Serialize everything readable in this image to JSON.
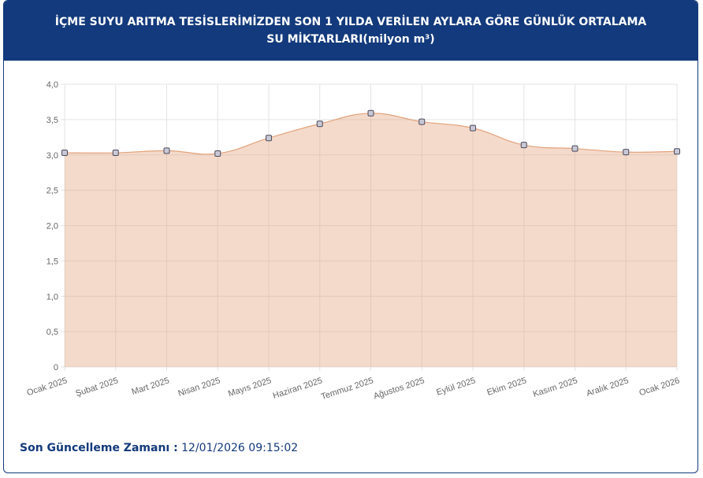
{
  "chart_data": {
    "type": "area",
    "title": "İÇME SUYU ARITMA TESİSLERİMİZDEN SON 1 YILDA VERİLEN AYLARA GÖRE GÜNLÜK ORTALAMA SU MİKTARLARI(milyon m³)",
    "categories": [
      "Ocak 2025",
      "Şubat 2025",
      "Mart 2025",
      "Nisan 2025",
      "Mayıs 2025",
      "Haziran 2025",
      "Temmuz 2025",
      "Ağustos 2025",
      "Eylül 2025",
      "Ekim 2025",
      "Kasım 2025",
      "Aralık 2025",
      "Ocak 2026"
    ],
    "series": [
      {
        "color": "#e3a27c",
        "values": [
          3.03,
          3.03,
          3.06,
          3.02,
          3.24,
          3.44,
          3.59,
          3.47,
          3.38,
          3.14,
          3.09,
          3.04,
          3.05
        ]
      }
    ],
    "ylim": [
      0,
      4
    ],
    "yticks": [
      0,
      {
        "value": 0.5,
        "label": "0,5"
      },
      {
        "value": 1,
        "label": "1,0"
      },
      {
        "value": 1.5,
        "label": "1,5"
      },
      {
        "value": 2,
        "label": "2,0"
      },
      {
        "value": 2.5,
        "label": "2,5"
      },
      {
        "value": 3,
        "label": "3,0"
      },
      {
        "value": 3.5,
        "label": "3,5"
      },
      {
        "value": 4,
        "label": "4,0"
      }
    ],
    "grid": true,
    "update_label": "Son Güncelleme Zamanı :",
    "update_value": "12/01/2026 09:15:02"
  }
}
